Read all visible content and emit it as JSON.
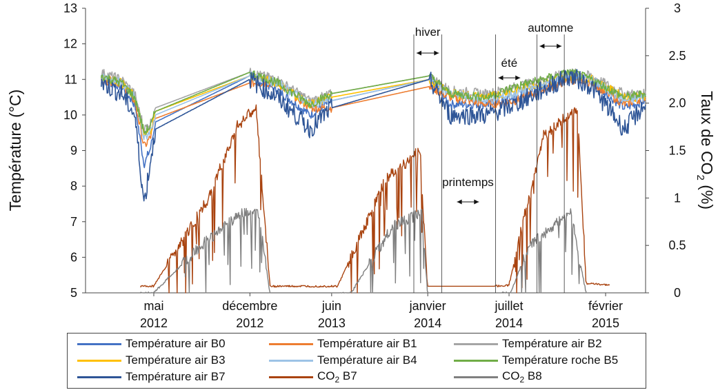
{
  "chart_data": {
    "type": "line",
    "y_left_label": "Température (°C)",
    "y_right_label": "Taux de CO",
    "y_right_label_sub": "2",
    "y_right_label_unit": " (%)",
    "ylim_left": [
      5,
      13
    ],
    "ylim_right": [
      0,
      3
    ],
    "y_left_ticks": [
      "5",
      "6",
      "7",
      "8",
      "9",
      "10",
      "11",
      "12",
      "13"
    ],
    "y_right_ticks": [
      "0",
      "0.5",
      "1",
      "1.5",
      "2.0",
      "2.5",
      "3"
    ],
    "x_ticks": [
      {
        "month": "mai",
        "year": "2012",
        "date": "2012-05"
      },
      {
        "month": "décembre",
        "year": "2012",
        "date": "2012-12"
      },
      {
        "month": "juin",
        "year": "2013",
        "date": "2013-06"
      },
      {
        "month": "janvier",
        "year": "2014",
        "date": "2014-01"
      },
      {
        "month": "juillet",
        "year": "2014",
        "date": "2014-07"
      },
      {
        "month": "février",
        "year": "2015",
        "date": "2015-02"
      }
    ],
    "x_range": [
      "2011-12",
      "2015-05"
    ],
    "season_annotations": [
      {
        "label": "hiver",
        "from": "2013-12",
        "to": "2014-02"
      },
      {
        "label": "printemps",
        "from": "2014-03",
        "to": "2014-05"
      },
      {
        "label": "été",
        "from": "2014-06",
        "to": "2014-08"
      },
      {
        "label": "automne",
        "from": "2014-09",
        "to": "2014-11"
      }
    ],
    "season_markers": [
      "2013-12",
      "2014-02",
      "2014-06",
      "2014-09",
      "2014-11"
    ],
    "series": [
      {
        "name": "Température air B0",
        "axis": "left",
        "color": "#4472c4",
        "points": [
          [
            "2012-01-05",
            11.0
          ],
          [
            "2012-02-20",
            10.8
          ],
          [
            "2012-03-20",
            10.3
          ],
          [
            "2012-04-10",
            8.6
          ],
          [
            "2012-04-25",
            9.1
          ],
          [
            "2012-05-05",
            9.8
          ],
          [
            "2012-12-01",
            11.1
          ],
          [
            "2013-02-01",
            10.7
          ],
          [
            "2013-04-15",
            10.0
          ],
          [
            "2013-06-01",
            10.4
          ],
          [
            "2014-01-05",
            11.0
          ],
          [
            "2014-02-20",
            10.3
          ],
          [
            "2014-05-15",
            10.3
          ],
          [
            "2014-07-15",
            10.5
          ],
          [
            "2014-11-15",
            11.1
          ],
          [
            "2015-01-01",
            10.9
          ],
          [
            "2015-03-15",
            10.2
          ],
          [
            "2015-05-01",
            10.4
          ]
        ]
      },
      {
        "name": "Température air B1",
        "axis": "left",
        "color": "#ed7d31",
        "points": [
          [
            "2012-01-05",
            11.0
          ],
          [
            "2012-02-20",
            10.9
          ],
          [
            "2012-03-20",
            10.4
          ],
          [
            "2012-04-10",
            9.1
          ],
          [
            "2012-04-25",
            9.4
          ],
          [
            "2012-05-05",
            9.9
          ],
          [
            "2012-12-01",
            10.9
          ],
          [
            "2013-02-01",
            10.9
          ],
          [
            "2013-04-15",
            10.2
          ],
          [
            "2013-06-01",
            10.2
          ],
          [
            "2014-01-05",
            10.8
          ],
          [
            "2014-02-20",
            10.5
          ],
          [
            "2014-05-15",
            10.3
          ],
          [
            "2014-07-15",
            10.4
          ],
          [
            "2014-11-15",
            11.0
          ],
          [
            "2015-01-01",
            10.9
          ],
          [
            "2015-03-15",
            10.3
          ],
          [
            "2015-05-01",
            10.5
          ]
        ]
      },
      {
        "name": "Température air B2",
        "axis": "left",
        "color": "#a5a5a5",
        "points": [
          [
            "2012-01-05",
            11.2
          ],
          [
            "2012-02-20",
            11.0
          ],
          [
            "2012-03-20",
            10.6
          ],
          [
            "2012-04-10",
            9.6
          ],
          [
            "2012-04-25",
            9.8
          ],
          [
            "2012-05-05",
            10.2
          ],
          [
            "2012-12-01",
            11.2
          ],
          [
            "2013-02-01",
            11.0
          ],
          [
            "2013-04-15",
            10.4
          ],
          [
            "2013-06-01",
            10.6
          ],
          [
            "2014-01-05",
            11.1
          ],
          [
            "2014-02-20",
            10.7
          ],
          [
            "2014-05-15",
            10.6
          ],
          [
            "2014-07-15",
            10.8
          ],
          [
            "2014-11-15",
            11.2
          ],
          [
            "2015-01-01",
            11.1
          ],
          [
            "2015-03-15",
            10.6
          ],
          [
            "2015-05-01",
            10.6
          ]
        ]
      },
      {
        "name": "Température air B3",
        "axis": "left",
        "color": "#ffc000",
        "points": [
          [
            "2012-01-05",
            11.1
          ],
          [
            "2012-02-20",
            10.9
          ],
          [
            "2012-03-20",
            10.5
          ],
          [
            "2012-04-10",
            9.4
          ],
          [
            "2012-04-25",
            9.6
          ],
          [
            "2012-05-05",
            10.1
          ],
          [
            "2012-12-01",
            11.1
          ],
          [
            "2013-02-01",
            10.9
          ],
          [
            "2013-04-15",
            10.3
          ],
          [
            "2013-06-01",
            10.5
          ],
          [
            "2014-01-05",
            11.0
          ],
          [
            "2014-02-20",
            10.6
          ],
          [
            "2014-05-15",
            10.5
          ],
          [
            "2014-07-15",
            10.7
          ],
          [
            "2014-11-15",
            11.1
          ],
          [
            "2015-01-01",
            11.0
          ],
          [
            "2015-03-15",
            10.5
          ],
          [
            "2015-05-01",
            10.5
          ]
        ]
      },
      {
        "name": "Température air B4",
        "axis": "left",
        "color": "#9dc3e6",
        "points": [
          [
            "2012-01-05",
            11.1
          ],
          [
            "2012-02-20",
            10.9
          ],
          [
            "2012-03-20",
            10.5
          ],
          [
            "2012-04-10",
            9.3
          ],
          [
            "2012-04-25",
            9.6
          ],
          [
            "2012-05-05",
            10.0
          ],
          [
            "2012-12-01",
            11.1
          ],
          [
            "2013-02-01",
            10.9
          ],
          [
            "2013-04-15",
            10.3
          ],
          [
            "2013-06-01",
            10.4
          ],
          [
            "2014-01-05",
            11.0
          ],
          [
            "2014-02-20",
            10.6
          ],
          [
            "2014-05-15",
            10.4
          ],
          [
            "2014-07-15",
            10.6
          ],
          [
            "2014-11-15",
            11.1
          ],
          [
            "2015-01-01",
            11.0
          ],
          [
            "2015-03-15",
            10.4
          ],
          [
            "2015-05-01",
            10.5
          ]
        ]
      },
      {
        "name": "Température roche B5",
        "axis": "left",
        "color": "#70ad47",
        "points": [
          [
            "2012-01-05",
            11.1
          ],
          [
            "2012-02-20",
            10.9
          ],
          [
            "2012-03-20",
            10.5
          ],
          [
            "2012-04-10",
            9.5
          ],
          [
            "2012-04-25",
            9.7
          ],
          [
            "2012-05-05",
            10.1
          ],
          [
            "2012-12-01",
            11.2
          ],
          [
            "2013-02-01",
            10.9
          ],
          [
            "2013-04-15",
            10.3
          ],
          [
            "2013-06-01",
            10.6
          ],
          [
            "2014-01-05",
            11.1
          ],
          [
            "2014-02-20",
            10.6
          ],
          [
            "2014-05-15",
            10.5
          ],
          [
            "2014-07-15",
            10.8
          ],
          [
            "2014-11-15",
            11.2
          ],
          [
            "2015-01-01",
            11.0
          ],
          [
            "2015-03-15",
            10.5
          ],
          [
            "2015-05-01",
            10.6
          ]
        ]
      },
      {
        "name": "Température air B7",
        "axis": "left",
        "color": "#2e5597",
        "points": [
          [
            "2012-01-05",
            10.9
          ],
          [
            "2012-02-20",
            10.6
          ],
          [
            "2012-03-20",
            10.0
          ],
          [
            "2012-04-10",
            7.5
          ],
          [
            "2012-04-25",
            8.8
          ],
          [
            "2012-05-05",
            9.6
          ],
          [
            "2012-12-01",
            11.0
          ],
          [
            "2013-02-01",
            10.5
          ],
          [
            "2013-04-15",
            9.6
          ],
          [
            "2013-06-01",
            10.2
          ],
          [
            "2014-01-05",
            11.0
          ],
          [
            "2014-02-20",
            10.0
          ],
          [
            "2014-05-15",
            10.0
          ],
          [
            "2014-07-15",
            10.3
          ],
          [
            "2014-11-15",
            11.1
          ],
          [
            "2015-01-01",
            10.8
          ],
          [
            "2015-03-15",
            9.6
          ],
          [
            "2015-05-01",
            10.3
          ]
        ]
      },
      {
        "name": "CO",
        "name_sub": "2",
        "name_suffix": " B7",
        "axis": "right",
        "color": "#a9430f",
        "points": [
          [
            "2012-04-01",
            0.07
          ],
          [
            "2012-05-01",
            0.07
          ],
          [
            "2012-09-01",
            1.0
          ],
          [
            "2012-11-01",
            1.75
          ],
          [
            "2012-12-15",
            1.95
          ],
          [
            "2013-01-15",
            0.07
          ],
          [
            "2013-05-01",
            0.07
          ],
          [
            "2013-06-15",
            0.07
          ],
          [
            "2013-10-01",
            1.2
          ],
          [
            "2013-12-15",
            1.5
          ],
          [
            "2014-01-01",
            0.07
          ],
          [
            "2014-06-01",
            0.07
          ],
          [
            "2014-07-01",
            0.08
          ],
          [
            "2014-09-15",
            1.65
          ],
          [
            "2014-12-01",
            1.95
          ],
          [
            "2014-12-20",
            0.1
          ],
          [
            "2015-02-10",
            0.08
          ]
        ]
      },
      {
        "name": "CO",
        "name_sub": "2",
        "name_suffix": " B8",
        "axis": "right",
        "color": "#7f7f7f",
        "points": [
          [
            "2012-04-01",
            0.0
          ],
          [
            "2012-05-01",
            0.0
          ],
          [
            "2012-08-15",
            0.5
          ],
          [
            "2012-11-15",
            0.85
          ],
          [
            "2012-12-20",
            0.85
          ],
          [
            "2013-01-15",
            0.0
          ],
          [
            "2013-06-20",
            0.0
          ],
          [
            "2013-07-15",
            0.0
          ],
          [
            "2013-10-15",
            0.7
          ],
          [
            "2013-12-20",
            0.85
          ],
          [
            "2014-01-01",
            0.0
          ],
          [
            "2014-06-15",
            0.0
          ],
          [
            "2014-07-05",
            0.0
          ],
          [
            "2014-08-15",
            0.5
          ],
          [
            "2014-11-15",
            0.85
          ],
          [
            "2014-12-20",
            0.0
          ]
        ]
      }
    ],
    "legend_placement": "bottom",
    "grid": false
  }
}
